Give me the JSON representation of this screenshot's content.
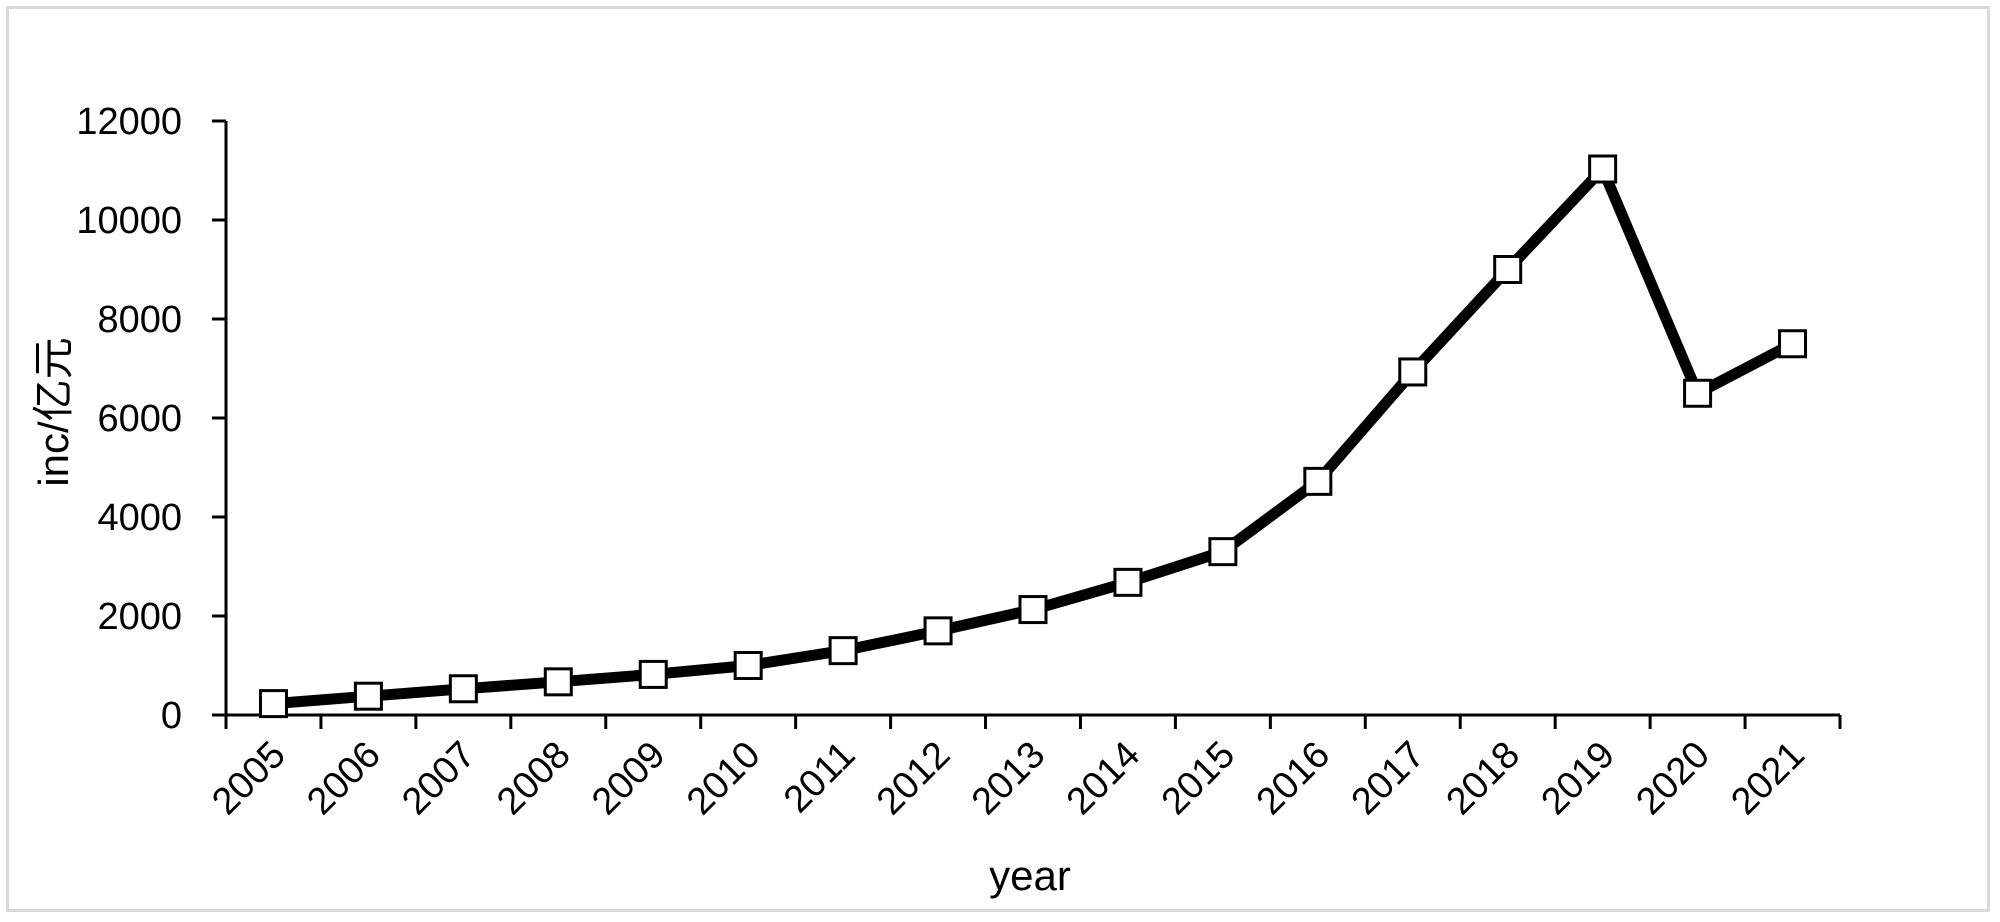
{
  "chart_data": {
    "type": "line",
    "title": "",
    "xlabel": "year",
    "ylabel": "inc/亿元",
    "x": [
      "2005",
      "2006",
      "2007",
      "2008",
      "2009",
      "2010",
      "2011",
      "2012",
      "2013",
      "2014",
      "2015",
      "2016",
      "2017",
      "2018",
      "2019",
      "2020",
      "2021"
    ],
    "series": [
      {
        "values": [
          230,
          380,
          530,
          670,
          820,
          1000,
          1300,
          1700,
          2130,
          2680,
          3300,
          4720,
          6930,
          9000,
          11030,
          6500,
          7500
        ],
        "color": "#000000",
        "marker": "square-open"
      }
    ],
    "ylim": [
      0,
      12000
    ],
    "yticks": [
      0,
      2000,
      4000,
      6000,
      8000,
      10000,
      12000
    ],
    "ytick_labels": [
      "0",
      "2000",
      "4000",
      "6000",
      "8000",
      "10000",
      "12000"
    ],
    "grid": false,
    "legend": "none"
  }
}
